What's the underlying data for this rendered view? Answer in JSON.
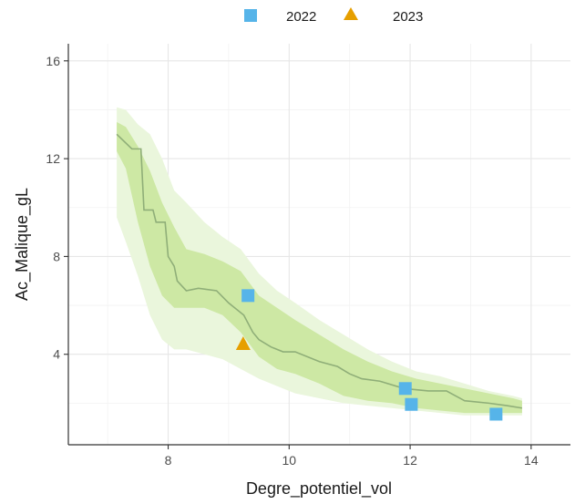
{
  "chart_data": {
    "type": "line",
    "xlabel": "Degre_potentiel_vol",
    "ylabel": "Ac_Malique_gL",
    "xlim": [
      6.35,
      14.65
    ],
    "ylim": [
      0.3,
      16.7
    ],
    "x_ticks": [
      8,
      10,
      12,
      14
    ],
    "y_ticks": [
      4,
      8,
      12,
      16
    ],
    "grid": true,
    "legend_position": "top",
    "legend": [
      {
        "label": "2022",
        "shape": "square",
        "color": "#56b4e9"
      },
      {
        "label": "2023",
        "shape": "triangle",
        "color": "#e69f00"
      }
    ],
    "colors": {
      "band_outer": "#eaf6dc",
      "band_inner": "#cde8a4",
      "median_line": "#8fae78",
      "grid_major": "#e6e6e6",
      "grid_minor": "#f2f2f2"
    },
    "series": [
      {
        "kind": "band_outer",
        "x": [
          7.15,
          7.3,
          7.5,
          7.7,
          7.9,
          8.1,
          8.3,
          8.6,
          8.9,
          9.2,
          9.5,
          9.8,
          10.1,
          10.5,
          10.9,
          11.3,
          11.7,
          12.1,
          12.5,
          12.9,
          13.3,
          13.7,
          13.85
        ],
        "lower": [
          9.6,
          8.6,
          7.2,
          5.6,
          4.6,
          4.2,
          4.2,
          4.0,
          3.8,
          3.4,
          3.0,
          2.7,
          2.4,
          2.2,
          2.0,
          1.9,
          1.8,
          1.7,
          1.6,
          1.5,
          1.5,
          1.5,
          1.5
        ],
        "upper": [
          14.1,
          14.0,
          13.4,
          13.0,
          12.0,
          10.7,
          10.2,
          9.4,
          8.8,
          8.3,
          7.3,
          6.6,
          6.1,
          5.4,
          4.8,
          4.2,
          3.7,
          3.3,
          3.1,
          2.8,
          2.5,
          2.3,
          2.2
        ]
      },
      {
        "kind": "band_inner",
        "x": [
          7.15,
          7.3,
          7.5,
          7.7,
          7.9,
          8.1,
          8.3,
          8.6,
          8.9,
          9.2,
          9.5,
          9.8,
          10.1,
          10.5,
          10.9,
          11.3,
          11.7,
          12.1,
          12.5,
          12.9,
          13.3,
          13.7,
          13.85
        ],
        "lower": [
          12.3,
          11.6,
          9.4,
          7.6,
          6.4,
          5.9,
          5.9,
          5.9,
          5.6,
          4.9,
          3.9,
          3.4,
          3.2,
          2.8,
          2.3,
          2.1,
          2.0,
          1.8,
          1.7,
          1.6,
          1.6,
          1.6,
          1.6
        ],
        "upper": [
          13.5,
          13.3,
          12.5,
          11.5,
          10.2,
          9.2,
          8.3,
          8.1,
          7.8,
          7.4,
          6.4,
          5.9,
          5.4,
          4.8,
          4.2,
          3.7,
          3.3,
          3.0,
          2.8,
          2.6,
          2.4,
          2.2,
          2.1
        ]
      },
      {
        "kind": "median",
        "x": [
          7.15,
          7.4,
          7.55,
          7.6,
          7.75,
          7.8,
          7.95,
          8.0,
          8.1,
          8.15,
          8.3,
          8.5,
          8.8,
          9.0,
          9.25,
          9.4,
          9.5,
          9.7,
          9.9,
          10.1,
          10.5,
          10.8,
          11.0,
          11.2,
          11.5,
          11.9,
          12.3,
          12.6,
          12.9,
          13.3,
          13.6,
          13.85
        ],
        "y": [
          13.0,
          12.4,
          12.4,
          9.9,
          9.9,
          9.4,
          9.4,
          8.0,
          7.6,
          7.0,
          6.6,
          6.7,
          6.6,
          6.1,
          5.6,
          4.9,
          4.6,
          4.3,
          4.1,
          4.1,
          3.7,
          3.5,
          3.2,
          3.0,
          2.9,
          2.6,
          2.5,
          2.5,
          2.1,
          2.0,
          1.9,
          1.8
        ]
      }
    ],
    "points": [
      {
        "year": "2022",
        "x": 9.32,
        "y": 6.4
      },
      {
        "year": "2022",
        "x": 11.92,
        "y": 2.6
      },
      {
        "year": "2022",
        "x": 12.02,
        "y": 1.95
      },
      {
        "year": "2022",
        "x": 13.42,
        "y": 1.55
      },
      {
        "year": "2023",
        "x": 9.24,
        "y": 4.4
      }
    ]
  }
}
